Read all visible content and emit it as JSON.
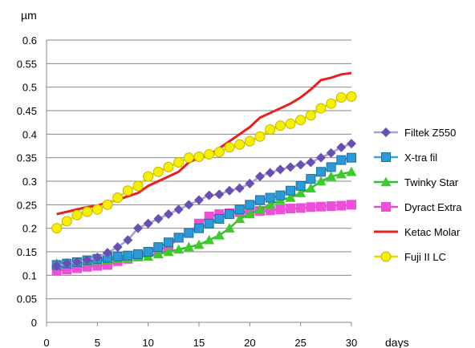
{
  "chart_data": {
    "type": "line",
    "ylabel": "µm",
    "xlabel": "days",
    "xlim": [
      0,
      30
    ],
    "ylim": [
      0,
      0.6
    ],
    "x_ticks": [
      0,
      5,
      10,
      15,
      20,
      25,
      30
    ],
    "y_ticks": [
      0,
      0.05,
      0.1,
      0.15,
      0.2,
      0.25,
      0.3,
      0.35,
      0.4,
      0.45,
      0.5,
      0.55,
      0.6
    ],
    "y_tick_labels": [
      "0",
      "0.05",
      "0.1",
      "0.15",
      "0.2",
      "0.25",
      "0.3",
      "0.35",
      "0.4",
      "0.45",
      "0.5",
      "0.55",
      "0.6"
    ],
    "grid": "horizontal",
    "legend_position": "right",
    "x": [
      1,
      2,
      3,
      4,
      5,
      6,
      7,
      8,
      9,
      10,
      11,
      12,
      13,
      14,
      15,
      16,
      17,
      18,
      19,
      20,
      21,
      22,
      23,
      24,
      25,
      26,
      27,
      28,
      29,
      30
    ],
    "series": [
      {
        "name": "Filtek Z550",
        "line_color": "#a7a0d2",
        "marker": "diamond",
        "marker_color": "#6a4fb3",
        "values": [
          0.12,
          0.125,
          0.128,
          0.132,
          0.138,
          0.148,
          0.16,
          0.175,
          0.2,
          0.21,
          0.22,
          0.23,
          0.24,
          0.25,
          0.26,
          0.27,
          0.272,
          0.28,
          0.285,
          0.295,
          0.31,
          0.318,
          0.325,
          0.33,
          0.335,
          0.34,
          0.35,
          0.36,
          0.372,
          0.38
        ]
      },
      {
        "name": "X-tra fil",
        "line_color": "#3aa6d8",
        "marker": "square",
        "marker_color": "#2c9ad6",
        "values": [
          0.122,
          0.125,
          0.128,
          0.132,
          0.135,
          0.137,
          0.14,
          0.142,
          0.145,
          0.15,
          0.16,
          0.17,
          0.18,
          0.19,
          0.2,
          0.21,
          0.22,
          0.23,
          0.24,
          0.25,
          0.26,
          0.265,
          0.27,
          0.28,
          0.29,
          0.305,
          0.32,
          0.33,
          0.345,
          0.35
        ]
      },
      {
        "name": "Twinky Star",
        "line_color": "#2ec02e",
        "marker": "triangle",
        "marker_color": "#3ecb2a",
        "values": [
          0.125,
          0.126,
          0.128,
          0.13,
          0.131,
          0.132,
          0.135,
          0.137,
          0.139,
          0.14,
          0.145,
          0.15,
          0.155,
          0.16,
          0.165,
          0.175,
          0.185,
          0.2,
          0.22,
          0.23,
          0.24,
          0.25,
          0.26,
          0.265,
          0.275,
          0.285,
          0.3,
          0.31,
          0.315,
          0.32
        ]
      },
      {
        "name": "Dyract Extra",
        "line_color": "#e84dd1",
        "marker": "square",
        "marker_color": "#ee4fd8",
        "values": [
          0.11,
          0.112,
          0.115,
          0.118,
          0.12,
          0.122,
          0.13,
          0.135,
          0.14,
          0.15,
          0.155,
          0.16,
          0.18,
          0.19,
          0.21,
          0.225,
          0.23,
          0.232,
          0.234,
          0.235,
          0.237,
          0.238,
          0.24,
          0.242,
          0.243,
          0.245,
          0.246,
          0.247,
          0.248,
          0.25
        ]
      },
      {
        "name": "Ketac Molar",
        "line_color": "#e8201e",
        "marker": "none",
        "marker_color": "#e8201e",
        "values": [
          0.23,
          0.235,
          0.24,
          0.245,
          0.248,
          0.255,
          0.26,
          0.268,
          0.275,
          0.29,
          0.3,
          0.31,
          0.32,
          0.34,
          0.35,
          0.355,
          0.37,
          0.385,
          0.4,
          0.415,
          0.435,
          0.445,
          0.455,
          0.465,
          0.478,
          0.495,
          0.515,
          0.52,
          0.527,
          0.53
        ]
      },
      {
        "name": "Fuji II LC",
        "line_color": "#e0e000",
        "marker": "circle",
        "marker_color": "#f5f000",
        "values": [
          0.2,
          0.215,
          0.228,
          0.235,
          0.24,
          0.25,
          0.265,
          0.28,
          0.29,
          0.31,
          0.32,
          0.33,
          0.34,
          0.35,
          0.352,
          0.357,
          0.362,
          0.372,
          0.378,
          0.385,
          0.395,
          0.41,
          0.418,
          0.422,
          0.43,
          0.44,
          0.455,
          0.465,
          0.478,
          0.48
        ]
      }
    ]
  }
}
